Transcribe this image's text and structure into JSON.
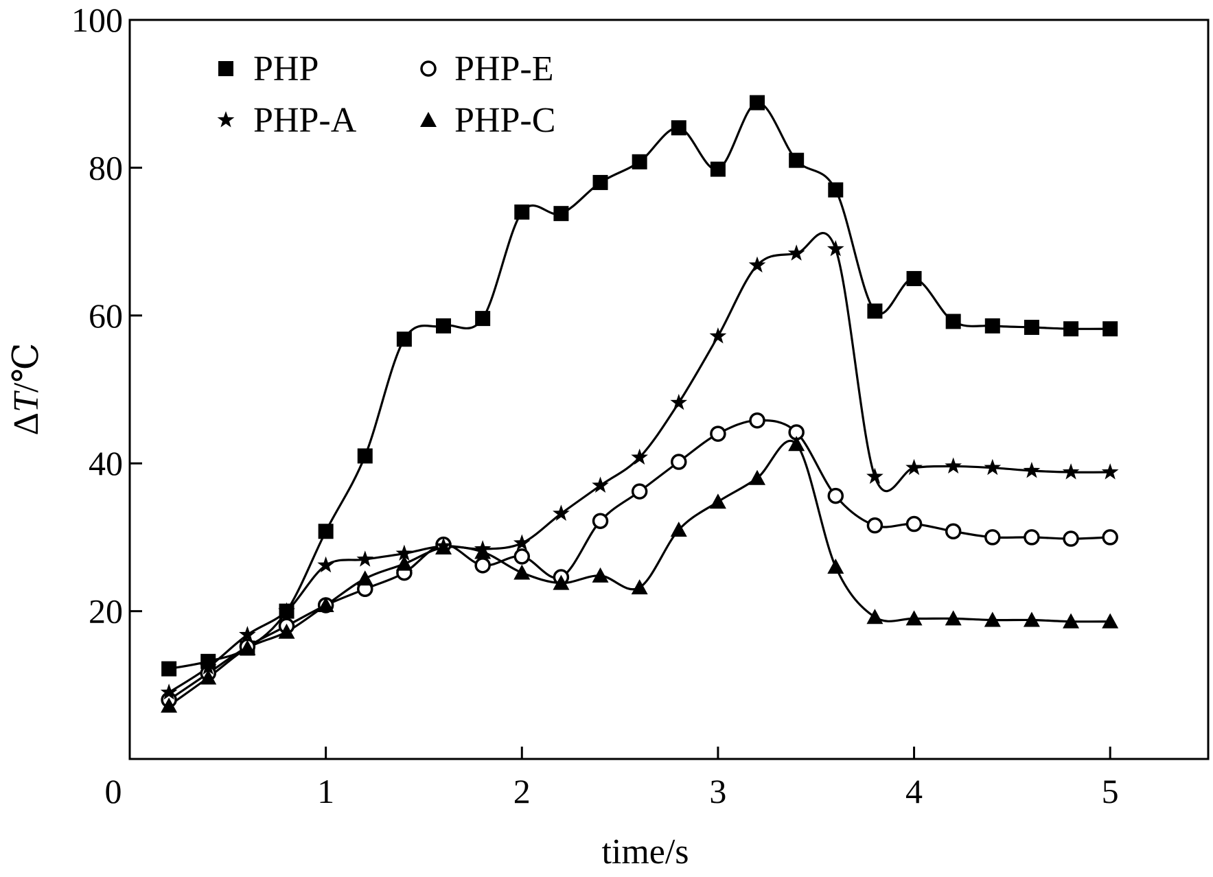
{
  "chart_data": {
    "type": "line",
    "xlabel": "time/s",
    "ylabel_prefix": "Δ",
    "ylabel_var": "T",
    "ylabel_suffix": "/℃",
    "xlim": [
      0,
      5.5
    ],
    "ylim": [
      0,
      100
    ],
    "origin_label": "0",
    "xticks": [
      1,
      2,
      3,
      4,
      5
    ],
    "yticks": [
      20,
      40,
      60,
      80,
      100
    ],
    "grid": false,
    "legend_position": "top-left",
    "x": [
      0.2,
      0.4,
      0.6,
      0.8,
      1.0,
      1.2,
      1.4,
      1.6,
      1.8,
      2.0,
      2.2,
      2.4,
      2.6,
      2.8,
      3.0,
      3.2,
      3.4,
      3.6,
      3.8,
      4.0,
      4.2,
      4.4,
      4.6,
      4.8,
      5.0
    ],
    "series": [
      {
        "name": "PHP",
        "marker": "square",
        "values": [
          12.2,
          13.2,
          15.0,
          20.0,
          30.8,
          41.0,
          56.8,
          58.6,
          59.6,
          74.0,
          73.8,
          78.0,
          80.8,
          85.4,
          79.8,
          88.8,
          81.0,
          77.0,
          60.6,
          65.0,
          59.2,
          58.6,
          58.4,
          58.2,
          58.2
        ]
      },
      {
        "name": "PHP-E",
        "marker": "circle",
        "values": [
          8.0,
          11.6,
          15.2,
          18.0,
          20.8,
          23.0,
          25.2,
          29.0,
          26.2,
          27.4,
          24.6,
          32.2,
          36.2,
          40.2,
          44.0,
          45.8,
          44.2,
          35.6,
          31.6,
          31.8,
          30.8,
          30.0,
          30.0,
          29.8,
          30.0
        ]
      },
      {
        "name": "PHP-A",
        "marker": "star",
        "values": [
          9.0,
          12.4,
          16.8,
          20.0,
          26.2,
          27.0,
          27.8,
          28.8,
          28.4,
          29.2,
          33.2,
          37.0,
          40.8,
          48.2,
          57.2,
          66.8,
          68.4,
          69.0,
          38.2,
          39.4,
          39.6,
          39.4,
          39.0,
          38.8,
          38.8
        ]
      },
      {
        "name": "PHP-C",
        "marker": "triangle",
        "values": [
          7.2,
          11.0,
          15.0,
          17.2,
          20.8,
          24.4,
          26.4,
          28.6,
          28.0,
          25.2,
          23.8,
          24.8,
          23.2,
          31.0,
          34.8,
          38.0,
          42.6,
          26.0,
          19.2,
          19.0,
          19.0,
          18.8,
          18.8,
          18.6,
          18.6
        ]
      }
    ]
  }
}
